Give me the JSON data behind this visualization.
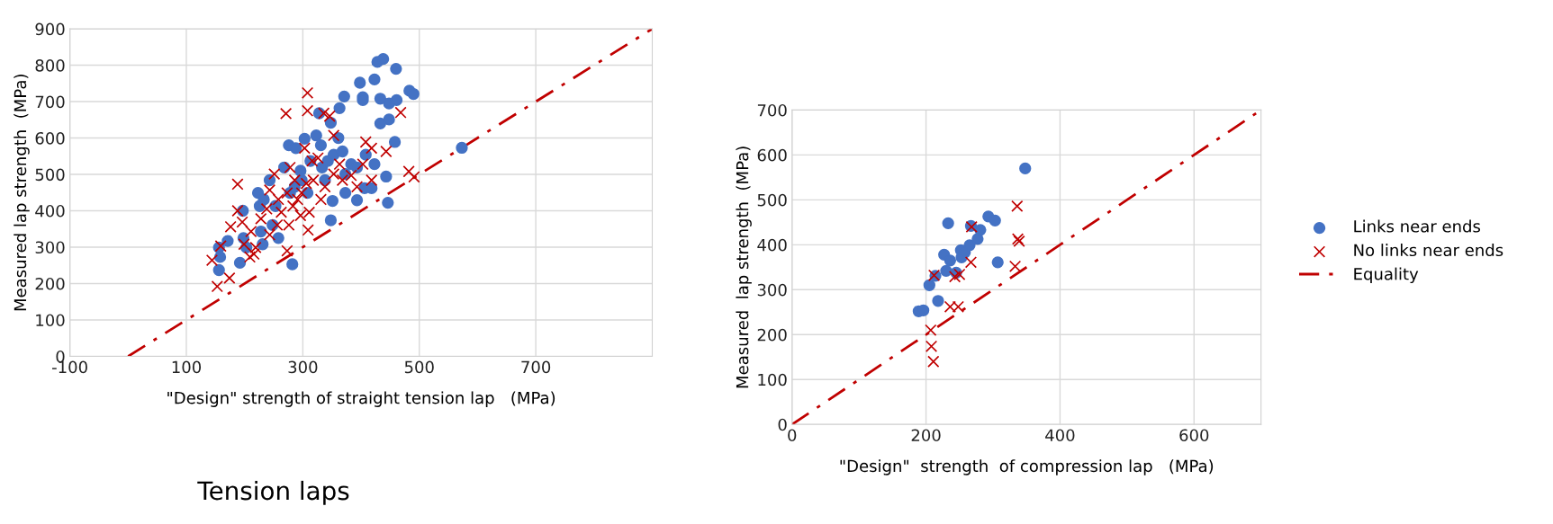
{
  "chart_data": [
    {
      "type": "scatter",
      "xlabel": "\"Design\" strength of straight tension lap   (MPa)",
      "ylabel": "Measured lap strength  (MPa)",
      "xlim": [
        -100,
        900
      ],
      "ylim": [
        0,
        900
      ],
      "xticks": [
        -100,
        100,
        300,
        500,
        700
      ],
      "yticks": [
        0,
        100,
        200,
        300,
        400,
        500,
        600,
        700,
        800,
        900
      ],
      "grid": true,
      "legend": false,
      "annotations": [
        "Tension laps"
      ],
      "series": [
        {
          "marker": "circle",
          "color": "#4472c4",
          "x": [
            156,
            158,
            156,
            171,
            192,
            197,
            198,
            203,
            223,
            226,
            228,
            231,
            233,
            243,
            248,
            253,
            258,
            268,
            276,
            278,
            282,
            286,
            288,
            296,
            298,
            303,
            308,
            313,
            323,
            328,
            331,
            333,
            338,
            343,
            348,
            351,
            348,
            353,
            361,
            363,
            368,
            371,
            373,
            373,
            383,
            393,
            393,
            398,
            403,
            403,
            406,
            408,
            418,
            423,
            423,
            428,
            433,
            433,
            438,
            443,
            446,
            448,
            448,
            458,
            460,
            461,
            483,
            490,
            573
          ],
          "values": [
            299,
            273,
            237,
            317,
            257,
            400,
            325,
            299,
            449,
            413,
            343,
            308,
            431,
            484,
            361,
            413,
            325,
            519,
            580,
            449,
            253,
            466,
            572,
            510,
            484,
            598,
            449,
            537,
            607,
            668,
            580,
            519,
            484,
            537,
            642,
            427,
            374,
            554,
            600,
            682,
            563,
            714,
            501,
            449,
            528,
            519,
            429,
            752,
            712,
            704,
            462,
            554,
            462,
            528,
            761,
            809,
            708,
            640,
            817,
            494,
            422,
            651,
            695,
            589,
            790,
            704,
            730,
            721,
            573
          ]
        },
        {
          "marker": "cross",
          "color": "#c00000",
          "x": [
            144,
            153,
            159,
            174,
            176,
            188,
            188,
            196,
            199,
            209,
            211,
            219,
            216,
            228,
            238,
            243,
            243,
            251,
            256,
            258,
            263,
            271,
            273,
            273,
            276,
            278,
            283,
            286,
            291,
            296,
            298,
            303,
            306,
            308,
            308,
            309,
            311,
            316,
            318,
            326,
            331,
            336,
            338,
            346,
            353,
            353,
            363,
            368,
            383,
            393,
            403,
            408,
            418,
            418,
            443,
            468,
            482,
            491
          ],
          "values": [
            264,
            192,
            303,
            215,
            356,
            473,
            400,
            369,
            308,
            273,
            343,
            299,
            281,
            378,
            405,
            457,
            334,
            501,
            361,
            431,
            396,
            667,
            290,
            449,
            361,
            519,
            413,
            484,
            431,
            387,
            449,
            572,
            475,
            724,
            675,
            347,
            396,
            537,
            484,
            545,
            431,
            668,
            466,
            660,
            607,
            501,
            528,
            484,
            497,
            466,
            528,
            589,
            572,
            484,
            563,
            670,
            508,
            493
          ]
        },
        {
          "type": "line",
          "line_style": "dashdot",
          "color": "#c00000",
          "x": [
            0,
            900
          ],
          "values": [
            0,
            900
          ]
        }
      ]
    },
    {
      "type": "scatter",
      "xlabel": "\"Design\"  strength  of compression lap   (MPa)",
      "ylabel": "Measured  lap strength  (MPa)",
      "xlim": [
        0,
        700
      ],
      "ylim": [
        0,
        700
      ],
      "xticks": [
        0,
        200,
        400,
        600
      ],
      "yticks": [
        0,
        100,
        200,
        300,
        400,
        500,
        600,
        700
      ],
      "grid": true,
      "legend": "right",
      "series": [
        {
          "name": "Links near ends",
          "marker": "circle",
          "color": "#4472c4",
          "x": [
            189,
            196,
            205,
            214,
            218,
            227,
            230,
            233,
            236,
            245,
            252,
            253,
            258,
            265,
            267,
            277,
            281,
            293,
            303,
            307,
            348
          ],
          "values": [
            252,
            254,
            310,
            331,
            275,
            378,
            342,
            448,
            365,
            338,
            388,
            372,
            383,
            399,
            442,
            413,
            433,
            463,
            454,
            361,
            570
          ]
        },
        {
          "name": "No links near ends",
          "marker": "cross",
          "color": "#c00000",
          "x": [
            207,
            208,
            211,
            212,
            236,
            243,
            248,
            250,
            267,
            268,
            333,
            336,
            337,
            339
          ],
          "values": [
            210,
            174,
            140,
            332,
            262,
            329,
            262,
            334,
            361,
            440,
            352,
            486,
            413,
            408
          ]
        },
        {
          "type": "line",
          "name": "Equality",
          "line_style": "dashdot",
          "color": "#c00000",
          "x": [
            0,
            700
          ],
          "values": [
            0,
            700
          ]
        }
      ]
    }
  ]
}
